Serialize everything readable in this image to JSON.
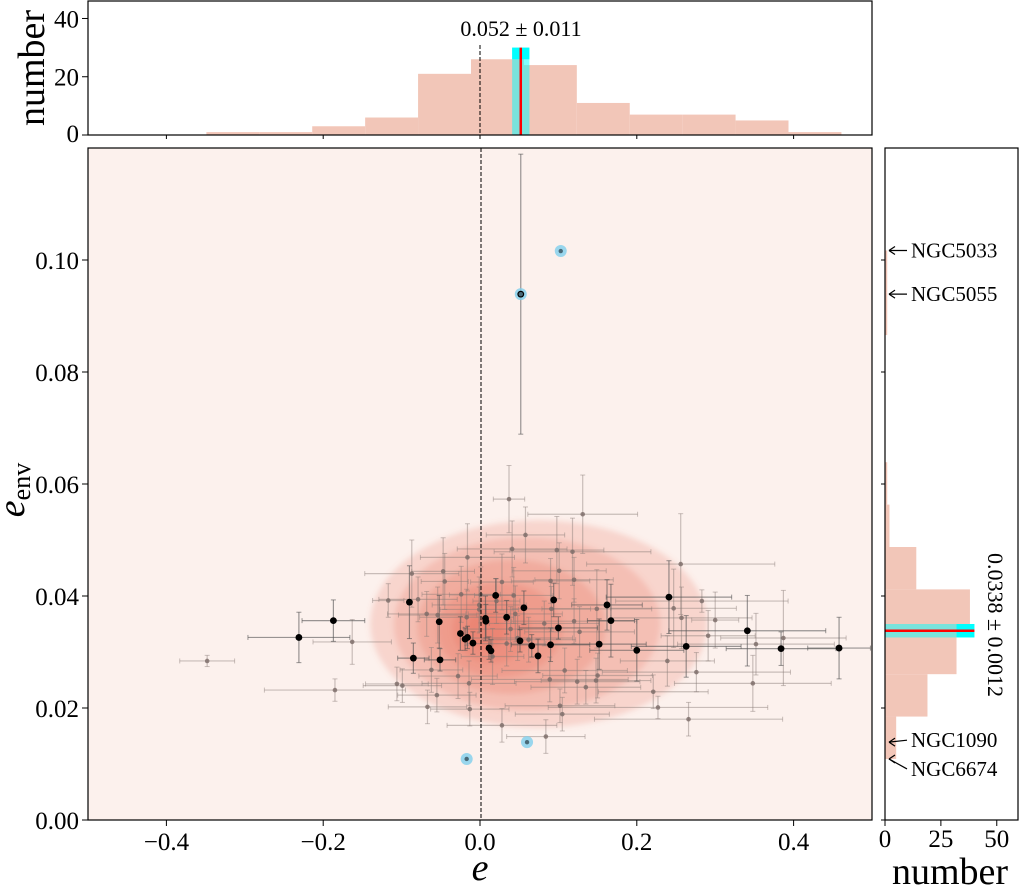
{
  "chart_data": [
    {
      "type": "scatter",
      "xlabel": "e",
      "ylabel": "e",
      "ylabel_subscript": "env",
      "xlim": [
        -0.5,
        0.5
      ],
      "ylim": [
        0,
        0.12
      ],
      "xticks": [
        -0.4,
        -0.2,
        0.0,
        0.2,
        0.4
      ],
      "xtick_labels": [
        "−0.4",
        "−0.2",
        "0.0",
        "0.2",
        "0.4"
      ],
      "yticks": [
        0.0,
        0.02,
        0.04,
        0.06,
        0.08,
        0.1
      ],
      "ytick_labels": [
        "0.00",
        "0.02",
        "0.04",
        "0.06",
        "0.08",
        "0.10"
      ],
      "reference_line_x": 0,
      "colors": {
        "background": "#fcf1ed",
        "density": "#e8735f",
        "gray_points": "#7a6a66",
        "black_points": "#000000",
        "highlight": "#7fd0ec"
      },
      "density_contours": true,
      "black_points": [
        [
          -0.231,
          0.0326,
          0.065,
          0.0045
        ],
        [
          -0.187,
          0.0356,
          0.04,
          0.0037
        ],
        [
          -0.09,
          0.0389,
          0.0,
          0.0065
        ],
        [
          -0.085,
          0.0289,
          0.02,
          0.0027
        ],
        [
          -0.052,
          0.0354,
          0.0,
          0.0047
        ],
        [
          -0.051,
          0.0286,
          0.02,
          0.002
        ],
        [
          -0.025,
          0.0333,
          0.0,
          0.003
        ],
        [
          -0.019,
          0.0323,
          0.0,
          0.002
        ],
        [
          -0.016,
          0.0326,
          0.0,
          0.002
        ],
        [
          -0.009,
          0.0316,
          0.0,
          0.002
        ],
        [
          0.007,
          0.036,
          0.0,
          0.004
        ],
        [
          0.0075,
          0.0355,
          0.0,
          0.003
        ],
        [
          0.0115,
          0.0307,
          0.0,
          0.002
        ],
        [
          0.014,
          0.0302,
          0.0,
          0.002
        ],
        [
          0.02,
          0.0401,
          0.0,
          0.003
        ],
        [
          0.034,
          0.0362,
          0.0,
          0.003
        ],
        [
          0.056,
          0.0379,
          0.0,
          0.003
        ],
        [
          0.051,
          0.032,
          0.0,
          0.002
        ],
        [
          0.066,
          0.0311,
          0.0,
          0.002
        ],
        [
          0.074,
          0.0293,
          0.0,
          0.003
        ],
        [
          0.09,
          0.0313,
          0.05,
          0.003
        ],
        [
          0.094,
          0.0393,
          0.0,
          0.003
        ],
        [
          0.1,
          0.0343,
          0.05,
          0.002
        ],
        [
          0.162,
          0.0384,
          0.045,
          0.0045
        ],
        [
          0.167,
          0.0356,
          0.03,
          0.0065
        ],
        [
          0.152,
          0.0314,
          0.06,
          0.0045
        ],
        [
          0.2,
          0.0303,
          0.06,
          0.0055
        ],
        [
          0.241,
          0.0398,
          0.08,
          0.0065
        ],
        [
          0.263,
          0.031,
          0.07,
          0.0055
        ],
        [
          0.341,
          0.0338,
          0.1,
          0.0063
        ],
        [
          0.384,
          0.0306,
          0.07,
          0.003
        ],
        [
          0.458,
          0.0307,
          0.04,
          0.0055
        ],
        [
          0.052,
          0.0939,
          0.0,
          0.025
        ]
      ],
      "gray_points": [
        [
          0.037,
          0.0573,
          0.02,
          0.006
        ],
        [
          0.058,
          0.0509,
          0.05,
          0.005
        ],
        [
          0.041,
          0.0484,
          0.07,
          0.005
        ],
        [
          0.098,
          0.0482,
          0.06,
          0.006
        ],
        [
          0.118,
          0.0479,
          0.1,
          0.006
        ],
        [
          -0.016,
          0.0469,
          0.06,
          0.006
        ],
        [
          -0.047,
          0.0444,
          0.04,
          0.006
        ],
        [
          -0.087,
          0.044,
          0.06,
          0.006
        ],
        [
          -0.045,
          0.0426,
          0.03,
          0.005
        ],
        [
          0.028,
          0.0425,
          0.04,
          0.005
        ],
        [
          0.101,
          0.0445,
          0.06,
          0.005
        ],
        [
          0.09,
          0.0427,
          0.05,
          0.004
        ],
        [
          0.12,
          0.0429,
          0.05,
          0.004
        ],
        [
          -0.117,
          0.0392,
          0.02,
          0.003
        ],
        [
          -0.079,
          0.0394,
          0.05,
          0.004
        ],
        [
          -0.024,
          0.0403,
          0.05,
          0.005
        ],
        [
          0.001,
          0.0402,
          0.04,
          0.005
        ],
        [
          0.043,
          0.0401,
          0.05,
          0.005
        ],
        [
          0.021,
          0.0391,
          0.03,
          0.004
        ],
        [
          -0.001,
          0.0384,
          0.06,
          0.005
        ],
        [
          -0.068,
          0.0368,
          0.05,
          0.004
        ],
        [
          -0.054,
          0.0366,
          0.05,
          0.005
        ],
        [
          -0.017,
          0.0362,
          0.06,
          0.005
        ],
        [
          -0.001,
          0.0376,
          0.05,
          0.004
        ],
        [
          0.045,
          0.0368,
          0.06,
          0.005
        ],
        [
          0.082,
          0.0351,
          0.07,
          0.004
        ],
        [
          0.12,
          0.0355,
          0.08,
          0.004
        ],
        [
          0.039,
          0.0341,
          0.06,
          0.004
        ],
        [
          0.048,
          0.0325,
          0.07,
          0.004
        ],
        [
          0.062,
          0.0322,
          0.06,
          0.004
        ],
        [
          0.034,
          0.0315,
          0.05,
          0.004
        ],
        [
          0.091,
          0.0377,
          0.05,
          0.004
        ],
        [
          0.016,
          0.0292,
          0.04,
          0.005
        ],
        [
          -0.163,
          0.0318,
          0.05,
          0.004
        ],
        [
          -0.062,
          0.0268,
          0.04,
          0.004
        ],
        [
          -0.028,
          0.0257,
          0.05,
          0.004
        ],
        [
          -0.014,
          0.0244,
          0.06,
          0.004
        ],
        [
          -0.106,
          0.0243,
          0.04,
          0.003
        ],
        [
          -0.099,
          0.024,
          0.05,
          0.003
        ],
        [
          -0.185,
          0.0232,
          0.09,
          0.002
        ],
        [
          -0.055,
          0.0223,
          0.05,
          0.003
        ],
        [
          -0.067,
          0.0202,
          0.05,
          0.003
        ],
        [
          -0.013,
          0.0198,
          0.05,
          0.003
        ],
        [
          0.028,
          0.0169,
          0.07,
          0.003
        ],
        [
          0.084,
          0.0149,
          0.05,
          0.003
        ],
        [
          0.108,
          0.0267,
          0.08,
          0.004
        ],
        [
          0.089,
          0.0251,
          0.1,
          0.004
        ],
        [
          0.124,
          0.0247,
          0.08,
          0.004
        ],
        [
          0.102,
          0.0204,
          0.07,
          0.003
        ],
        [
          0.105,
          0.0189,
          0.06,
          0.003
        ],
        [
          -0.348,
          0.0284,
          0.035,
          0.001
        ],
        [
          0.131,
          0.0546,
          0.07,
          0.007
        ],
        [
          0.256,
          0.0457,
          0.12,
          0.009
        ],
        [
          0.283,
          0.0391,
          0.11,
          0.002
        ],
        [
          0.247,
          0.0378,
          0.08,
          0.007
        ],
        [
          0.149,
          0.0377,
          0.07,
          0.007
        ],
        [
          0.257,
          0.0361,
          0.09,
          0.0055
        ],
        [
          0.3,
          0.0357,
          0.03,
          0.005
        ],
        [
          0.291,
          0.0329,
          0.06,
          0.0045
        ],
        [
          0.387,
          0.0325,
          0.08,
          0.0085
        ],
        [
          0.352,
          0.0314,
          0.1,
          0.0055
        ],
        [
          0.127,
          0.0336,
          0.07,
          0.0045
        ],
        [
          0.239,
          0.0284,
          0.06,
          0.0045
        ],
        [
          0.276,
          0.0264,
          0.12,
          0.0035
        ],
        [
          0.15,
          0.0258,
          0.07,
          0.004
        ],
        [
          0.148,
          0.0249,
          0.07,
          0.004
        ],
        [
          0.135,
          0.0237,
          0.07,
          0.003
        ],
        [
          0.348,
          0.0244,
          0.1,
          0.005
        ],
        [
          0.221,
          0.0229,
          0.07,
          0.003
        ],
        [
          0.227,
          0.0201,
          0.14,
          0.002
        ],
        [
          0.266,
          0.018,
          0.12,
          0.003
        ]
      ],
      "highlighted_points": [
        {
          "name": "NGC5033",
          "e": 0.103,
          "e_env": 0.1016
        },
        {
          "name": "NGC5055",
          "e": 0.052,
          "e_env": 0.0939
        },
        {
          "name": "NGC1090",
          "e": 0.06,
          "e_env": 0.0139
        },
        {
          "name": "NGC6674",
          "e": -0.017,
          "e_env": 0.0109
        }
      ]
    },
    {
      "type": "bar",
      "orientation": "vertical",
      "ylabel": "number",
      "xlim": [
        -0.5,
        0.5
      ],
      "ylim": [
        0,
        46
      ],
      "yticks": [
        0,
        20,
        40
      ],
      "bin_edges": [
        -0.349,
        -0.2815,
        -0.214,
        -0.1465,
        -0.079,
        -0.0115,
        0.056,
        0.1235,
        0.191,
        0.2585,
        0.326,
        0.3935,
        0.461
      ],
      "values": [
        1,
        1,
        3,
        6,
        21,
        26,
        24,
        11,
        7,
        7,
        5,
        1
      ],
      "color": "#f2c6b8",
      "mean": 0.052,
      "error": 0.011,
      "mean_label": "0.052 ± 0.011",
      "band_color": "#00ffff",
      "mean_line_color": "#ff0000",
      "reference_line_x": 0
    },
    {
      "type": "bar",
      "orientation": "horizontal",
      "xlabel": "number",
      "xlim": [
        0,
        59.5
      ],
      "xticks": [
        0,
        25,
        50
      ],
      "bin_edges": [
        0.0109,
        0.01847,
        0.02604,
        0.03361,
        0.04118,
        0.04875,
        0.05632,
        0.06389,
        0.07146,
        0.07903,
        0.0866,
        0.09417,
        0.1017
      ],
      "values": [
        5,
        19,
        32,
        38,
        14,
        2,
        1,
        0,
        0,
        0,
        1,
        1
      ],
      "color": "#f2c6b8",
      "mean": 0.0338,
      "error": 0.0012,
      "mean_label": "0.0338 ± 0.0012",
      "band_color": "#00ffff",
      "mean_line_color": "#ff0000",
      "annotations": [
        {
          "label": "NGC5033",
          "e_env": 0.1017
        },
        {
          "label": "NGC5055",
          "e_env": 0.0939
        },
        {
          "label": "NGC1090",
          "e_env": 0.0139
        },
        {
          "label": "NGC6674",
          "e_env": 0.0109
        }
      ]
    }
  ]
}
